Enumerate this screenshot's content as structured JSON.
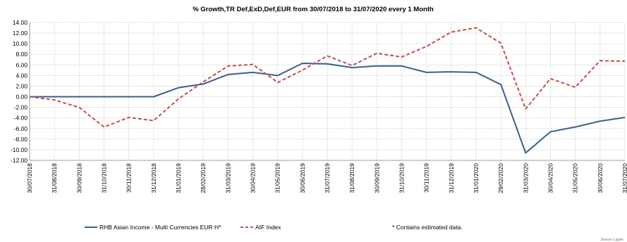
{
  "chart_data": {
    "type": "line",
    "title": "% Growth,TR Def,ExD,Def,EUR from 30/07/2018 to 31/07/2020 every 1 Month",
    "x": [
      "30/07/2018",
      "31/08/2018",
      "30/09/2018",
      "31/10/2018",
      "30/11/2018",
      "31/12/2018",
      "31/01/2019",
      "28/02/2019",
      "31/03/2019",
      "30/04/2019",
      "31/05/2019",
      "30/06/2019",
      "31/07/2019",
      "31/08/2019",
      "30/09/2019",
      "31/10/2019",
      "30/11/2019",
      "31/12/2019",
      "31/01/2020",
      "29/02/2020",
      "31/03/2020",
      "30/04/2020",
      "31/05/2020",
      "30/06/2020",
      "31/07/2020"
    ],
    "ylim": [
      -12,
      14
    ],
    "yticks": [
      "14.00",
      "12.00",
      "10.00",
      "8.00",
      "6.00",
      "4.00",
      "2.00",
      "0.00",
      "-2.00",
      "-4.00",
      "-6.00",
      "-8.00",
      "-10.00",
      "-12.00"
    ],
    "grid": true,
    "legend_position": "bottom",
    "series": [
      {
        "name": "RHB Asian Income - Multi Currencies EUR H*",
        "color": "#3a5f8f",
        "dash": "solid",
        "values": [
          0.0,
          0.0,
          0.0,
          0.0,
          0.0,
          0.0,
          1.7,
          2.4,
          4.2,
          4.6,
          4.0,
          6.3,
          6.2,
          5.5,
          5.8,
          5.8,
          4.6,
          4.7,
          4.6,
          2.3,
          -10.6,
          -6.6,
          -5.7,
          -4.6,
          -3.9
        ]
      },
      {
        "name": "AIF Index",
        "color": "#c0504d",
        "dash": "dashed",
        "values": [
          0.0,
          -0.6,
          -2.0,
          -5.7,
          -3.9,
          -4.5,
          -0.4,
          2.8,
          5.8,
          6.1,
          2.7,
          5.0,
          7.7,
          5.9,
          8.2,
          7.5,
          9.5,
          12.2,
          13.0,
          10.1,
          -2.3,
          3.4,
          1.8,
          6.8,
          6.7
        ]
      }
    ],
    "footnote": "* Contains estimated data."
  },
  "source_label": "Source: Lipper"
}
